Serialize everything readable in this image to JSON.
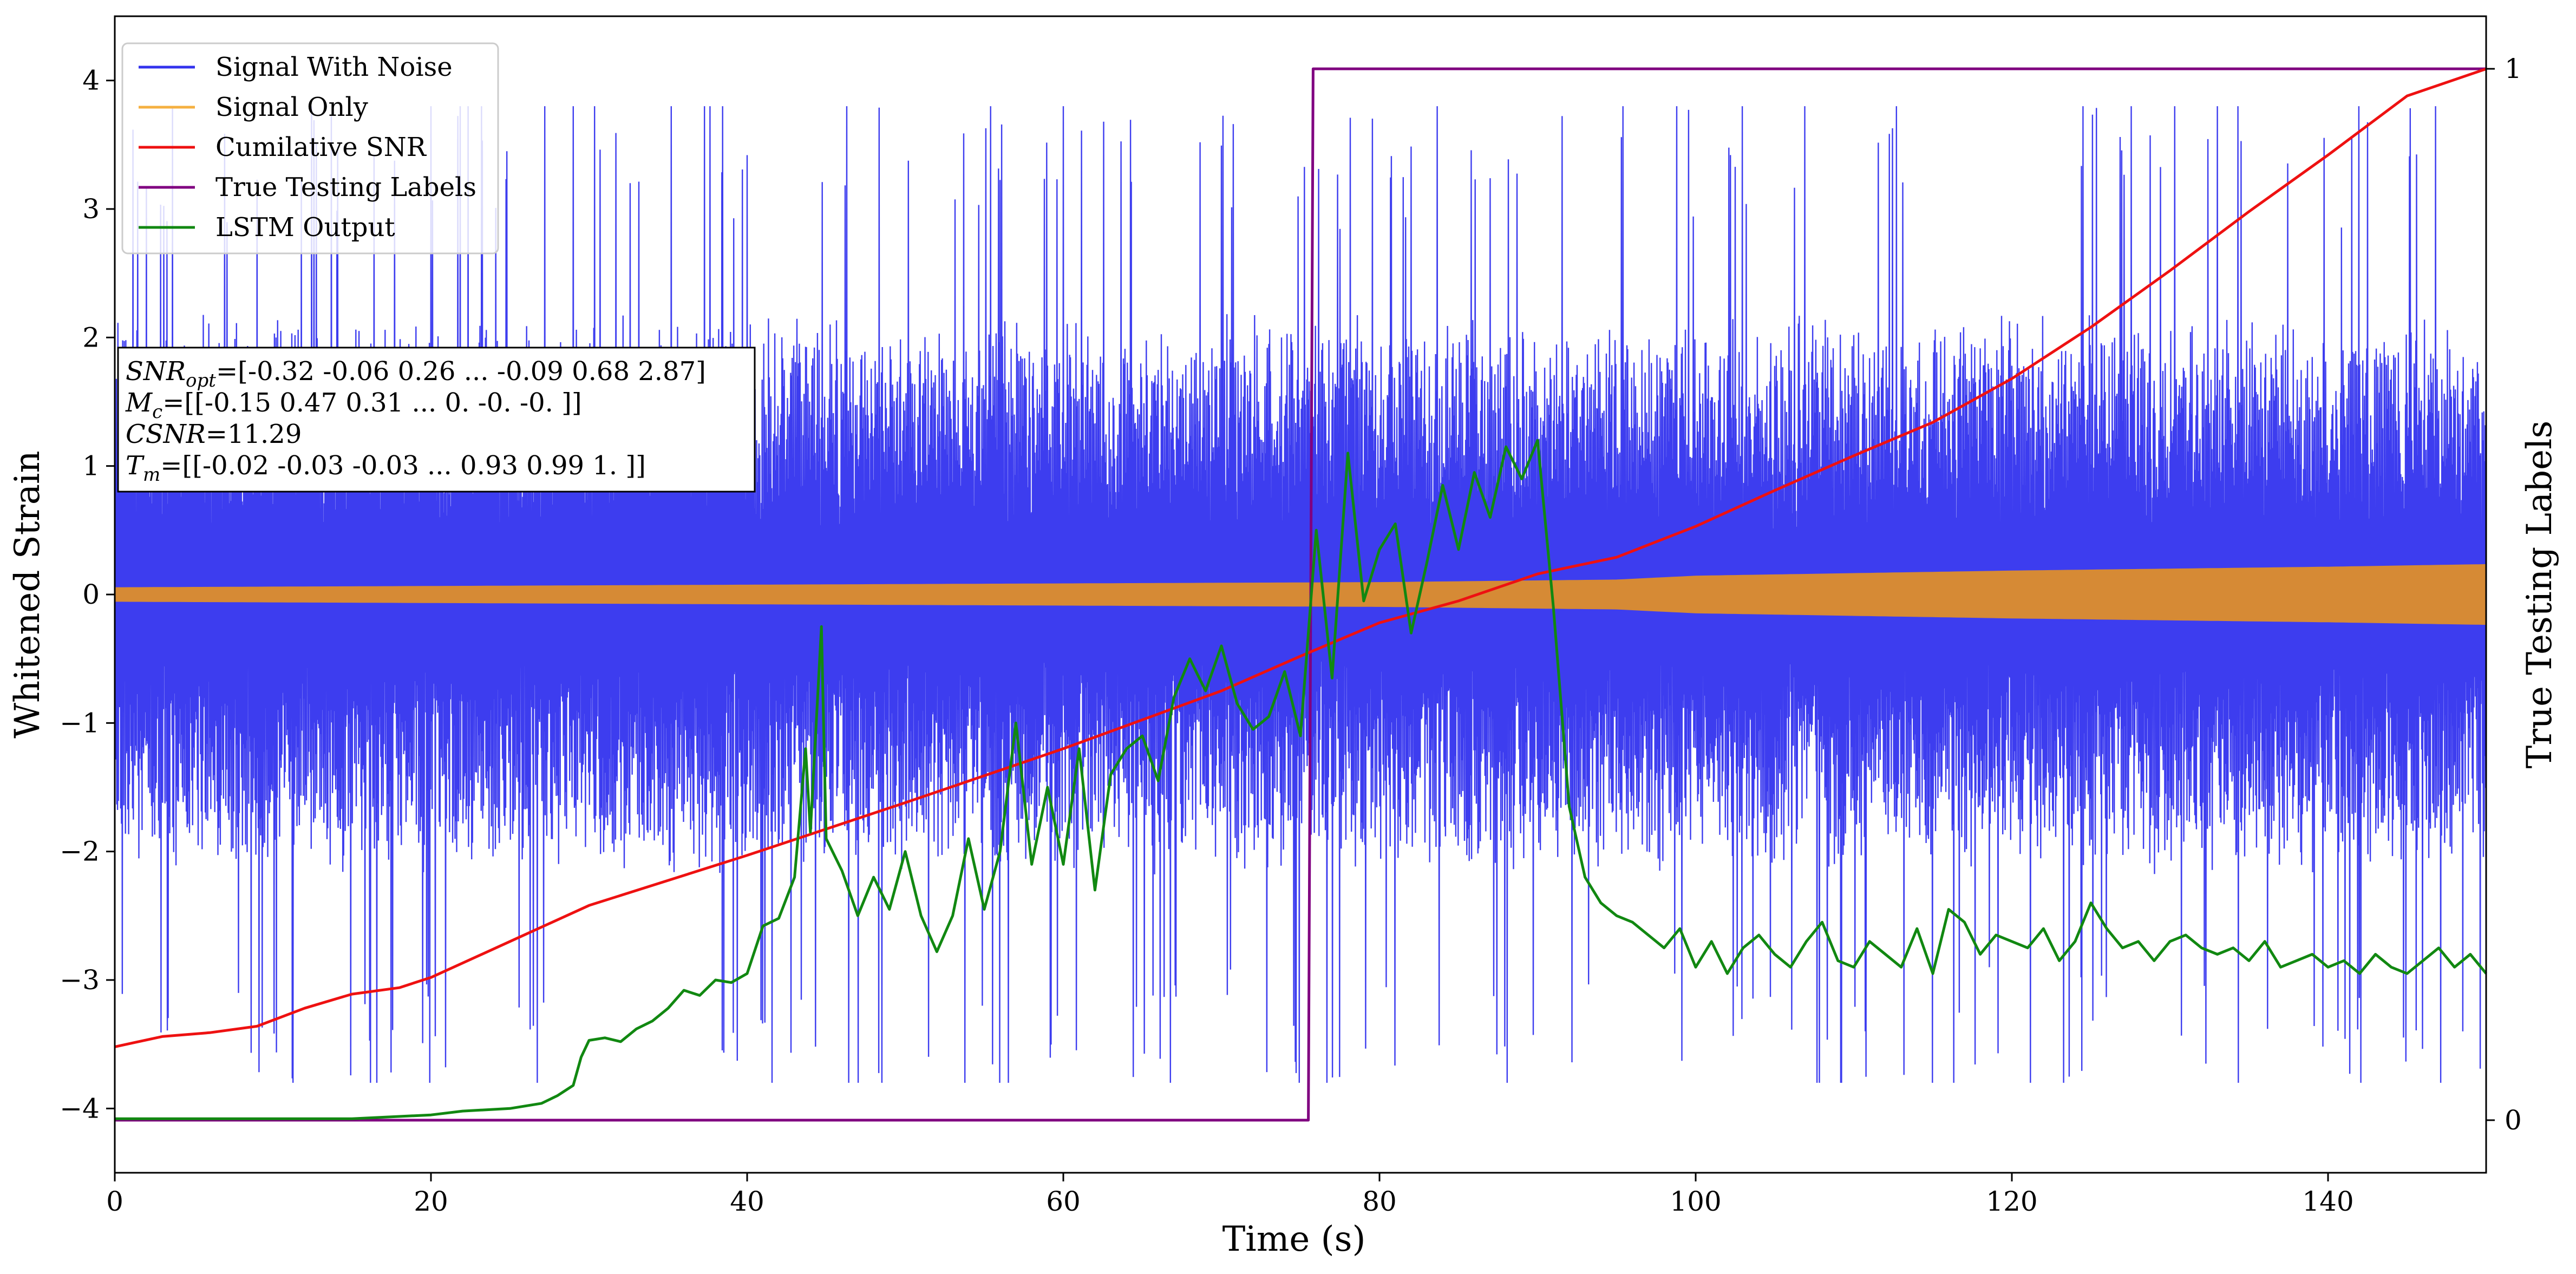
{
  "chart_data": {
    "type": "line",
    "xlabel": "Time (s)",
    "ylabel": "Whitened Strain",
    "y2label": "True Testing Labels",
    "xlim": [
      0,
      150
    ],
    "ylim": [
      -4.5,
      4.5
    ],
    "y2lim": [
      -0.05,
      1.05
    ],
    "x_ticks": [
      0,
      20,
      40,
      60,
      80,
      100,
      120,
      140
    ],
    "y_ticks": [
      -4,
      -3,
      -2,
      -1,
      0,
      1,
      2,
      3,
      4
    ],
    "y2_ticks": [
      0,
      1
    ],
    "grid": false,
    "legend_position": "top-left",
    "series": [
      {
        "name": "Signal With Noise",
        "color": "#3333ee",
        "axis": "left",
        "style": "noise",
        "typical_amplitude": 2.0,
        "peak_amplitude": 4.0,
        "min_value": -3.8,
        "max_value": 3.8
      },
      {
        "name": "Signal Only",
        "color": "#f5b041",
        "band_color": "#d68a35",
        "axis": "left",
        "style": "envelope",
        "x": [
          0,
          20,
          40,
          60,
          80,
          95,
          100,
          120,
          140,
          150
        ],
        "amplitude": [
          0.05,
          0.06,
          0.07,
          0.08,
          0.09,
          0.11,
          0.14,
          0.18,
          0.21,
          0.23
        ]
      },
      {
        "name": "Cumilative SNR",
        "color": "#ee1111",
        "axis": "left",
        "x": [
          0,
          3,
          6,
          9,
          12,
          15,
          18,
          20,
          25,
          30,
          40,
          50,
          60,
          70,
          75,
          80,
          85,
          90,
          95,
          100,
          105,
          110,
          115,
          120,
          125,
          130,
          135,
          140,
          145,
          150
        ],
        "values": [
          -3.52,
          -3.44,
          -3.41,
          -3.36,
          -3.22,
          -3.11,
          -3.06,
          -2.98,
          -2.7,
          -2.42,
          -2.03,
          -1.62,
          -1.2,
          -0.75,
          -0.48,
          -0.22,
          -0.05,
          0.16,
          0.29,
          0.53,
          0.81,
          1.08,
          1.34,
          1.68,
          2.08,
          2.52,
          2.98,
          3.42,
          3.88,
          4.09
        ]
      },
      {
        "name": "True Testing Labels",
        "color": "#800080",
        "axis": "right",
        "x": [
          0,
          75.5,
          75.8,
          150
        ],
        "values": [
          0,
          0,
          1,
          1
        ]
      },
      {
        "name": "LSTM Output",
        "color": "#118811",
        "axis": "left",
        "x": [
          0,
          15,
          20,
          22,
          25,
          27,
          28,
          29,
          29.5,
          30,
          31,
          32,
          33,
          34,
          35,
          36,
          37,
          38,
          39,
          40,
          41,
          42,
          43,
          43.7,
          44,
          44.7,
          45,
          46,
          47,
          48,
          49,
          50,
          51,
          52,
          53,
          54,
          55,
          56,
          57,
          58,
          59,
          60,
          61,
          62,
          63,
          64,
          65,
          66,
          67,
          68,
          69,
          70,
          71,
          72,
          73,
          74,
          75,
          76,
          77,
          78,
          79,
          80,
          81,
          82,
          83,
          84,
          85,
          86,
          87,
          88,
          89,
          90,
          91,
          92,
          93,
          94,
          95,
          96,
          97,
          98,
          99,
          100,
          101,
          102,
          103,
          104,
          105,
          106,
          107,
          108,
          109,
          110,
          111,
          112,
          113,
          114,
          115,
          116,
          117,
          118,
          119,
          120,
          121,
          122,
          123,
          124,
          125,
          126,
          127,
          128,
          129,
          130,
          131,
          132,
          133,
          134,
          135,
          136,
          137,
          138,
          139,
          140,
          141,
          142,
          143,
          144,
          145,
          146,
          147,
          148,
          149,
          150
        ],
        "values": [
          -4.08,
          -4.08,
          -4.05,
          -4.02,
          -4.0,
          -3.96,
          -3.9,
          -3.82,
          -3.6,
          -3.47,
          -3.45,
          -3.48,
          -3.38,
          -3.32,
          -3.22,
          -3.08,
          -3.12,
          -3.0,
          -3.02,
          -2.95,
          -2.58,
          -2.52,
          -2.2,
          -1.2,
          -1.85,
          -0.25,
          -1.9,
          -2.15,
          -2.5,
          -2.2,
          -2.45,
          -2.0,
          -2.5,
          -2.78,
          -2.5,
          -1.9,
          -2.45,
          -2.0,
          -1.0,
          -2.1,
          -1.5,
          -2.1,
          -1.2,
          -2.3,
          -1.4,
          -1.2,
          -1.1,
          -1.45,
          -0.8,
          -0.5,
          -0.75,
          -0.4,
          -0.85,
          -1.05,
          -0.95,
          -0.6,
          -1.1,
          0.5,
          -0.65,
          1.1,
          -0.05,
          0.35,
          0.55,
          -0.3,
          0.25,
          0.85,
          0.35,
          0.95,
          0.6,
          1.15,
          0.9,
          1.2,
          -0.1,
          -1.65,
          -2.2,
          -2.4,
          -2.5,
          -2.55,
          -2.65,
          -2.75,
          -2.6,
          -2.9,
          -2.7,
          -2.95,
          -2.75,
          -2.65,
          -2.8,
          -2.9,
          -2.7,
          -2.55,
          -2.85,
          -2.9,
          -2.7,
          -2.8,
          -2.9,
          -2.6,
          -2.95,
          -2.45,
          -2.55,
          -2.8,
          -2.65,
          -2.7,
          -2.75,
          -2.6,
          -2.85,
          -2.7,
          -2.4,
          -2.6,
          -2.75,
          -2.7,
          -2.85,
          -2.7,
          -2.65,
          -2.75,
          -2.8,
          -2.75,
          -2.85,
          -2.7,
          -2.9,
          -2.85,
          -2.8,
          -2.9,
          -2.85,
          -2.95,
          -2.8,
          -2.9,
          -2.95,
          -2.85,
          -2.75,
          -2.9,
          -2.8,
          -2.95
        ]
      }
    ],
    "annotation": {
      "lines": [
        {
          "sym": "SNR",
          "sub": "opt",
          "text": "=[-0.32 -0.06  0.26 ... -0.09  0.68  2.87]"
        },
        {
          "sym": "M",
          "sub": "c",
          "text": "=[[-0.15  0.47  0.31 ...  0.   -0.   -0.  ]]"
        },
        {
          "sym": "CSNR",
          "sub": "",
          "text": "=11.29"
        },
        {
          "sym": "T",
          "sub": "m",
          "text": "=[[-0.02 -0.03 -0.03 ...  0.93  0.99  1.  ]]"
        }
      ]
    }
  }
}
